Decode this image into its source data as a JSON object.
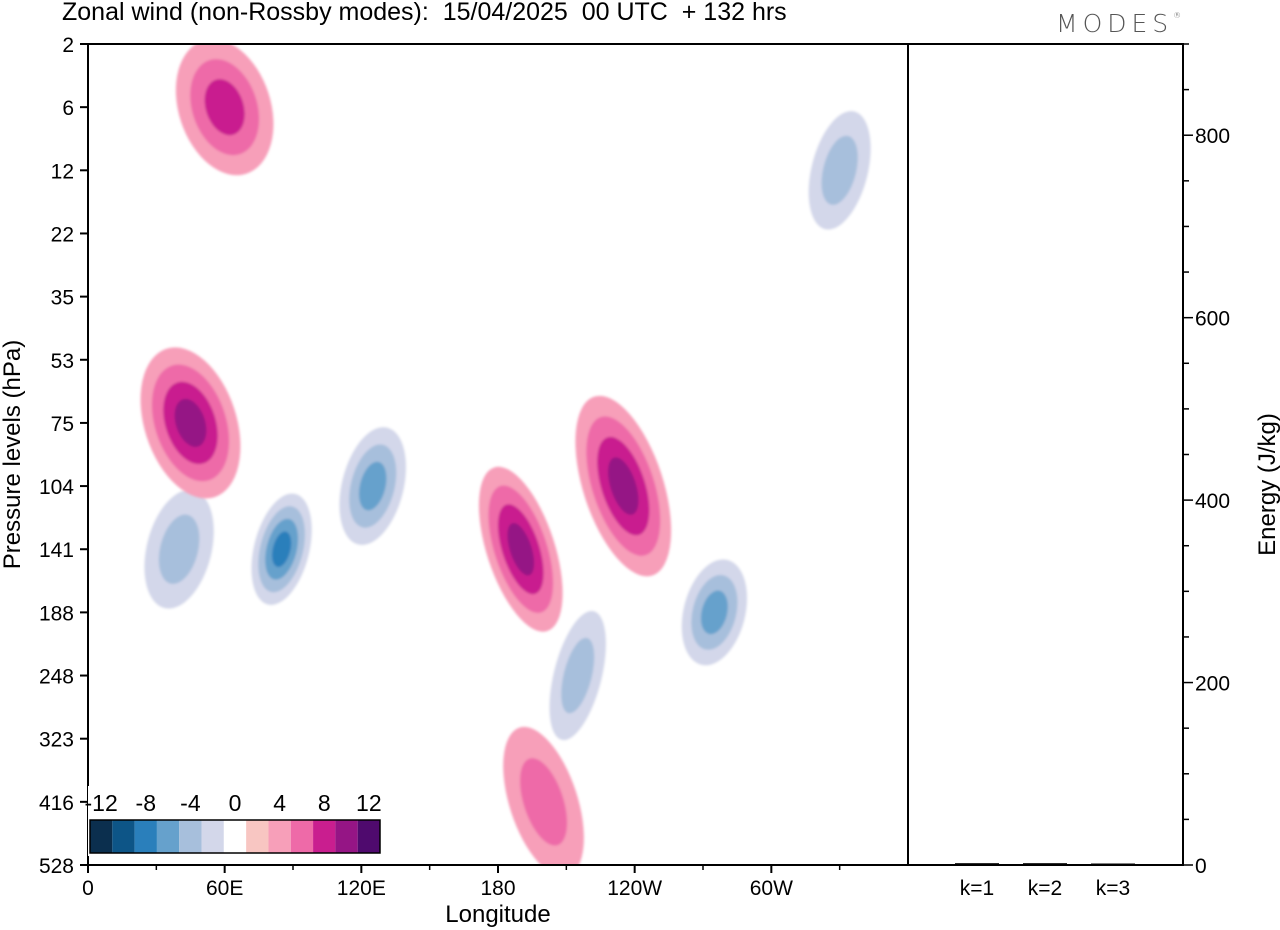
{
  "header": {
    "title": "Zonal wind (non-Rossby modes):  15/04/2025  00 UTC  + 132 hrs",
    "brand": "MODES",
    "brand_mark": "®"
  },
  "chart_data": [
    {
      "type": "heatmap",
      "title": "Zonal wind (non-Rossby modes):  15/04/2025  00 UTC  + 132 hrs",
      "xlabel": "Longitude",
      "ylabel": "Pressure levels (hPa)",
      "x_ticks": [
        "0",
        "60E",
        "120E",
        "180",
        "120W",
        "60W"
      ],
      "x_tick_values": [
        0,
        60,
        120,
        180,
        240,
        300
      ],
      "xlim": [
        0,
        360
      ],
      "y_ticks": [
        "2",
        "6",
        "12",
        "22",
        "35",
        "53",
        "75",
        "104",
        "141",
        "188",
        "248",
        "323",
        "416",
        "528"
      ],
      "y_scale": "model levels (non-linear), top = 2 hPa",
      "colorbar": {
        "labels": [
          "-12",
          "-8",
          "-4",
          "0",
          "4",
          "8",
          "12"
        ],
        "levels": [
          -14,
          -12,
          -10,
          -8,
          -6,
          -4,
          -2,
          2,
          4,
          6,
          8,
          10,
          12,
          14
        ],
        "colors": [
          "#0b2f4e",
          "#0d5587",
          "#2a7fbb",
          "#66a1cc",
          "#a7bfdc",
          "#d3d7ea",
          "#ffffff",
          "#f8c6c2",
          "#f79fb9",
          "#ee6aa8",
          "#c91e8f",
          "#951585",
          "#4f0a6e"
        ],
        "placement": "bottom-left"
      },
      "features": [
        {
          "sign": "negative",
          "lon": 85,
          "level": "141",
          "peak": -10
        },
        {
          "sign": "negative",
          "lon": 125,
          "level": "104",
          "peak": -8
        },
        {
          "sign": "negative",
          "lon": 40,
          "level": "141",
          "peak": -6
        },
        {
          "sign": "negative",
          "lon": 215,
          "level": "248",
          "peak": -6
        },
        {
          "sign": "negative",
          "lon": 275,
          "level": "188",
          "peak": -8
        },
        {
          "sign": "positive",
          "lon": 45,
          "level": "75",
          "peak": 8
        },
        {
          "sign": "positive",
          "lon": 190,
          "level": "141",
          "peak": 8
        },
        {
          "sign": "positive",
          "lon": 235,
          "level": "104",
          "peak": 8
        },
        {
          "sign": "positive",
          "lon": 60,
          "level": "6",
          "peak": 6
        },
        {
          "sign": "positive",
          "lon": 200,
          "level": "416",
          "peak": 4
        },
        {
          "sign": "negative",
          "lon": 330,
          "level": "12",
          "peak": -6
        }
      ],
      "grid": false
    },
    {
      "type": "bar",
      "categories": [
        "k=1",
        "k=2",
        "k=3"
      ],
      "values": [
        2,
        2,
        1
      ],
      "ylabel": "Energy (J/kg)",
      "y_ticks": [
        "0",
        "200",
        "400",
        "600",
        "800"
      ],
      "ylim": [
        0,
        900
      ],
      "axis_side": "right",
      "colors": {
        "bar": "#000000"
      }
    }
  ]
}
